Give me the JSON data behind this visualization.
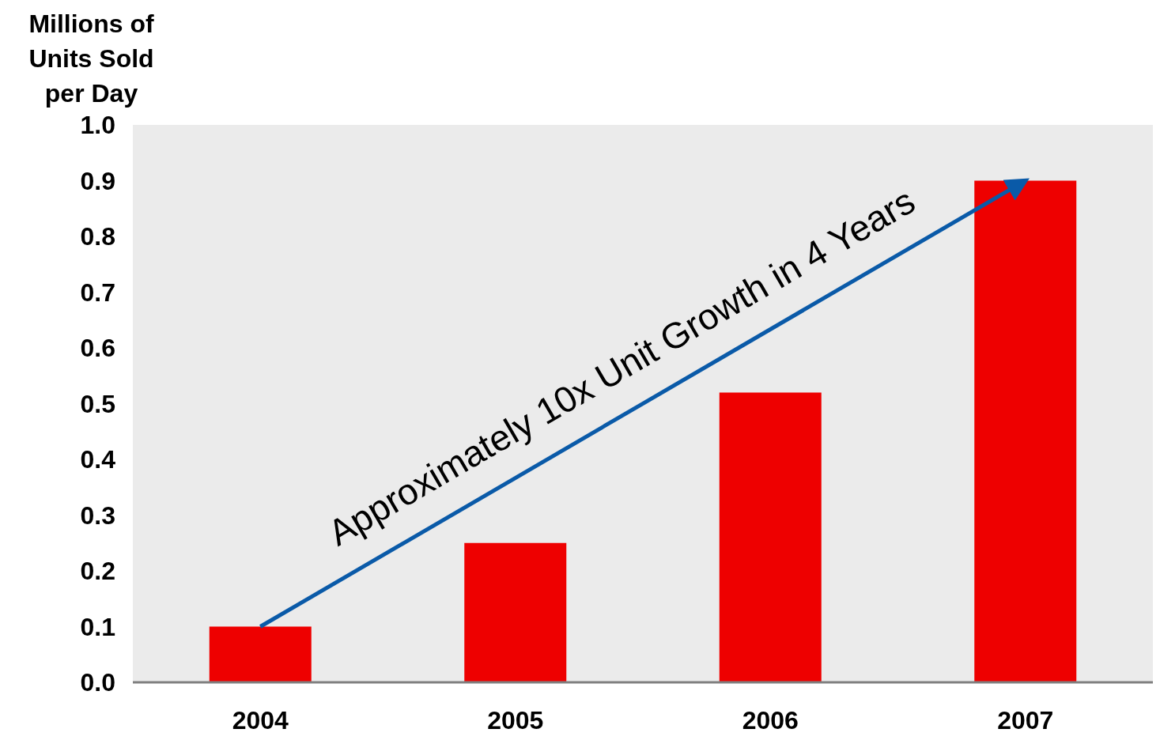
{
  "chart_data": {
    "type": "bar",
    "ylabel": "Millions of Units Sold per Day",
    "categories": [
      "2004",
      "2005",
      "2006",
      "2007"
    ],
    "values": [
      0.1,
      0.25,
      0.52,
      0.9
    ],
    "color": "#ee0000",
    "ylim": [
      0,
      1
    ],
    "yticks": [
      {
        "value": 0,
        "label": "0.0"
      },
      0.1,
      0.2,
      0.3,
      0.4,
      0.5,
      0.6,
      0.7,
      0.8,
      0.9,
      {
        "value": 1,
        "label": "1.0"
      }
    ],
    "grid": false,
    "annotations": [
      "Approximately 10x Unit Growth in 4 Years"
    ]
  }
}
